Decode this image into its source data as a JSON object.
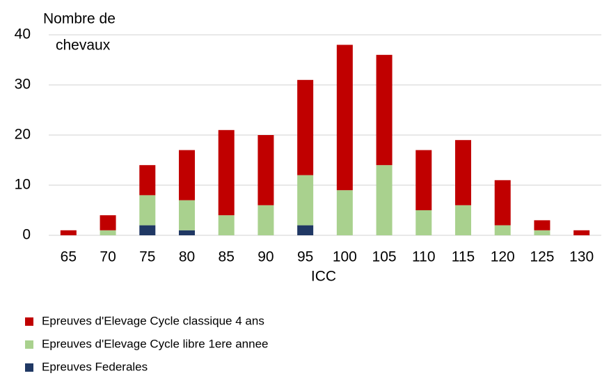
{
  "chart_data": {
    "type": "bar",
    "stacked": true,
    "y_label": [
      "Nombre de",
      "chevaux"
    ],
    "x_label": "ICC",
    "categories": [
      "65",
      "70",
      "75",
      "80",
      "85",
      "90",
      "95",
      "100",
      "105",
      "110",
      "115",
      "120",
      "125",
      "130"
    ],
    "series": [
      {
        "name": "Epreuves Federales",
        "color": "#203864",
        "values": [
          0,
          0,
          2,
          1,
          0,
          0,
          2,
          0,
          0,
          0,
          0,
          0,
          0,
          0
        ]
      },
      {
        "name": "Epreuves d'Elevage Cycle libre 1ere annee",
        "color": "#a9d18e",
        "values": [
          0,
          1,
          6,
          6,
          4,
          6,
          10,
          9,
          14,
          5,
          6,
          2,
          1,
          0
        ]
      },
      {
        "name": "Epreuves d'Elevage Cycle classique 4 ans",
        "color": "#c00000",
        "values": [
          1,
          3,
          6,
          10,
          17,
          14,
          19,
          29,
          22,
          12,
          13,
          9,
          2,
          1
        ]
      }
    ],
    "legend_order": [
      2,
      1,
      0
    ],
    "ylim": [
      0,
      40
    ],
    "yticks": [
      0,
      10,
      20,
      30,
      40
    ],
    "grid": true
  }
}
